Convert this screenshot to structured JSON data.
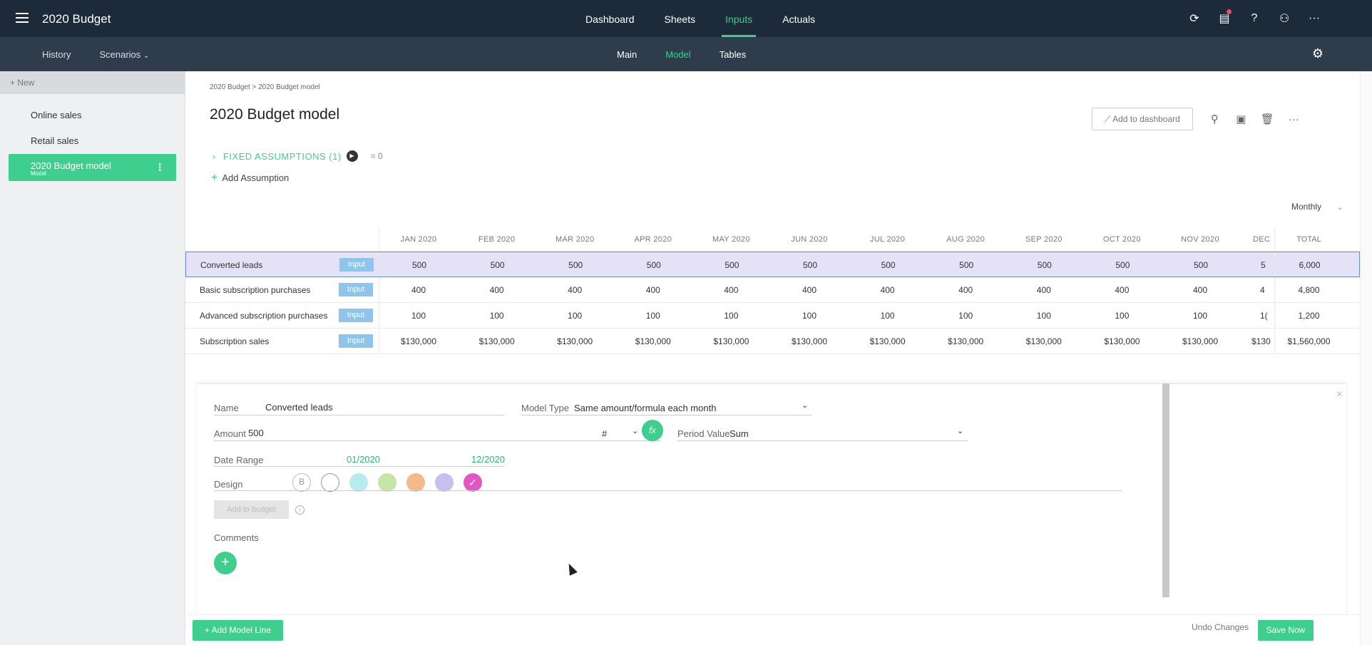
{
  "app": {
    "title": "2020 Budget",
    "nav_tabs": [
      "Dashboard",
      "Sheets",
      "Inputs",
      "Actuals"
    ],
    "active_tab": "Inputs",
    "top_icons": [
      "sync-icon",
      "clipboard-icon",
      "help-icon",
      "users-icon",
      "more-icon"
    ]
  },
  "subnav": {
    "history": "History",
    "scenarios": "Scenarios",
    "tabs": [
      "Main",
      "Model",
      "Tables"
    ],
    "active_tab": "Model"
  },
  "sidebar": {
    "new_label": "New",
    "items": [
      {
        "label": "Online sales"
      },
      {
        "label": "Retail sales"
      },
      {
        "label": "2020 Budget model",
        "sub": "Model",
        "active": true
      }
    ]
  },
  "page": {
    "breadcrumb": "2020 Budget > 2020 Budget model",
    "title": "2020 Budget model",
    "add_to_dashboard": "Add to dashboard",
    "fixed_assumptions": "FIXED ASSUMPTIONS (1)",
    "fixed_assumptions_value": "= 0",
    "add_assumption": "Add Assumption",
    "period": "Monthly"
  },
  "table": {
    "months": [
      "JAN 2020",
      "FEB 2020",
      "MAR 2020",
      "APR 2020",
      "MAY 2020",
      "JUN 2020",
      "JUL 2020",
      "AUG 2020",
      "SEP 2020",
      "OCT 2020",
      "NOV 2020",
      "DEC"
    ],
    "total_header": "TOTAL",
    "badge": "Input",
    "rows": [
      {
        "name": "Converted leads",
        "values": [
          "500",
          "500",
          "500",
          "500",
          "500",
          "500",
          "500",
          "500",
          "500",
          "500",
          "500",
          "5"
        ],
        "total": "6,000",
        "selected": true
      },
      {
        "name": "Basic subscription purchases",
        "values": [
          "400",
          "400",
          "400",
          "400",
          "400",
          "400",
          "400",
          "400",
          "400",
          "400",
          "400",
          "4"
        ],
        "total": "4,800"
      },
      {
        "name": "Advanced subscription purchases",
        "values": [
          "100",
          "100",
          "100",
          "100",
          "100",
          "100",
          "100",
          "100",
          "100",
          "100",
          "100",
          "1("
        ],
        "total": "1,200"
      },
      {
        "name": "Subscription sales",
        "values": [
          "$130,000",
          "$130,000",
          "$130,000",
          "$130,000",
          "$130,000",
          "$130,000",
          "$130,000",
          "$130,000",
          "$130,000",
          "$130,000",
          "$130,000",
          "$130"
        ],
        "total": "$1,560,000"
      }
    ]
  },
  "detail": {
    "name_label": "Name",
    "name_value": "Converted leads",
    "model_type_label": "Model Type",
    "model_type_value": "Same amount/formula each month",
    "amount_label": "Amount",
    "amount_value": "500",
    "unit": "#",
    "fx": "fx",
    "period_value_label": "Period Value",
    "period_value": "Sum",
    "date_range_label": "Date Range",
    "date_start": "01/2020",
    "date_end": "12/2020",
    "design_label": "Design",
    "bold_label": "B",
    "swatches": [
      "#ffffff",
      "#b6ecf0",
      "#c5e6a6",
      "#f5b98c",
      "#c8c0ec",
      "#e255c4"
    ],
    "add_to_budget": "Add to budget",
    "info": "i",
    "comments_label": "Comments"
  },
  "footer": {
    "add_model_line": "Add Model Line",
    "undo": "Undo Changes",
    "save": "Save Now"
  }
}
